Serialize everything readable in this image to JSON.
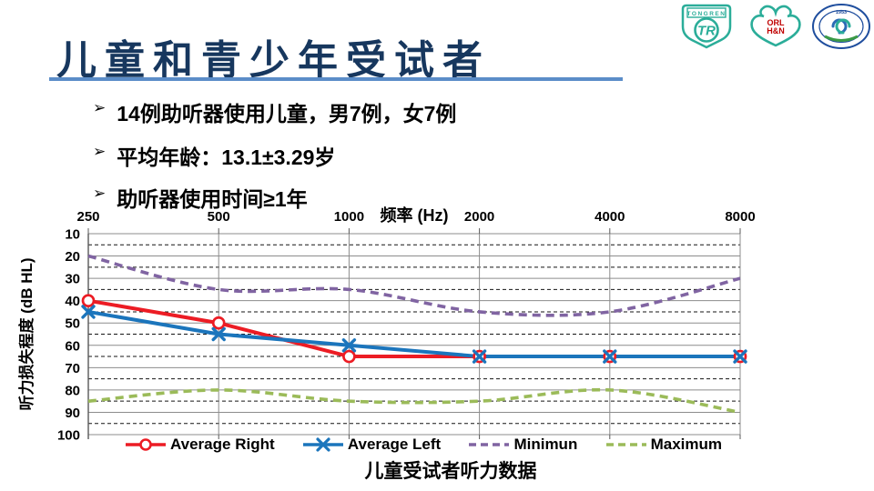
{
  "slide": {
    "title": "儿童和青少年受试者",
    "bullets": [
      "14例助听器使用儿童，男7例，女7例",
      "平均年龄：13.1±3.29岁",
      "助听器使用时间≥1年"
    ],
    "bullet_glyph": "➢",
    "caption": "儿童受试者听力数据",
    "title_color": "#17375E",
    "underline_color": "#5B8DC8"
  },
  "logos": {
    "tongren": {
      "banner_text": "TONGREN",
      "monogram": "TR",
      "color": "#2BAD99"
    },
    "orl_hn": {
      "line1": "ORL",
      "line2": "H&N",
      "color": "#2BAD99",
      "text_color": "#C00000"
    },
    "seal": {
      "year": "1953",
      "color": "#1F4E9E",
      "arc_color": "#3A9A46"
    }
  },
  "chart_data": {
    "type": "line",
    "title": "",
    "x_axis_title": "频率 (Hz)",
    "y_axis_title": "听力损失程度 (dB HL)",
    "categories": [
      250,
      500,
      1000,
      2000,
      4000,
      8000
    ],
    "y_ticks": [
      10,
      20,
      30,
      40,
      50,
      60,
      70,
      80,
      90,
      100
    ],
    "ylim": [
      10,
      100
    ],
    "y_inverted": true,
    "grid": "major-solid-minor-dashed",
    "legend_position": "bottom",
    "series": [
      {
        "name": "Average Right",
        "color": "#EC1C24",
        "marker": "circle",
        "dash": false,
        "smooth": false,
        "values": [
          40,
          50,
          65,
          65,
          65,
          65
        ]
      },
      {
        "name": "Average Left",
        "color": "#1B75BC",
        "marker": "x",
        "dash": false,
        "smooth": false,
        "values": [
          45,
          55,
          60,
          65,
          65,
          65
        ]
      },
      {
        "name": "Minimun",
        "color": "#8064A2",
        "marker": "none",
        "dash": true,
        "smooth": true,
        "values": [
          20,
          35,
          35,
          45,
          45,
          30
        ]
      },
      {
        "name": "Maximum",
        "color": "#9BBB59",
        "marker": "none",
        "dash": true,
        "smooth": true,
        "values": [
          85,
          80,
          85,
          85,
          80,
          90
        ]
      }
    ]
  }
}
